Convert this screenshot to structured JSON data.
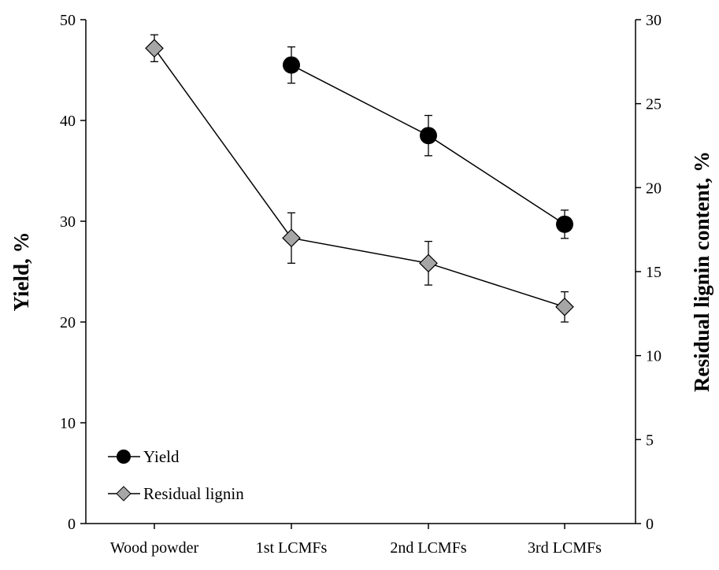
{
  "chart_data": {
    "type": "line",
    "categories": [
      "Wood powder",
      "1st LCMFs",
      "2nd LCMFs",
      "3rd LCMFs"
    ],
    "ylabel": "Yield, %",
    "y2label": "Residual lignin content, %",
    "ylim": [
      0,
      50
    ],
    "y2lim": [
      0,
      30
    ],
    "yticks": [
      0,
      10,
      20,
      30,
      40,
      50
    ],
    "y2ticks": [
      0,
      5,
      10,
      15,
      20,
      25,
      30
    ],
    "grid": false,
    "legend_position": "bottom-left",
    "series": [
      {
        "name": "Yield",
        "axis": "left",
        "marker": "circle",
        "color": "#000000",
        "values": [
          null,
          45.5,
          38.5,
          29.7
        ],
        "errors": [
          null,
          1.8,
          2.0,
          1.4
        ]
      },
      {
        "name": "Residual lignin",
        "axis": "right",
        "marker": "diamond",
        "color": "#a6a6a6",
        "values": [
          28.3,
          17.0,
          15.5,
          12.9
        ],
        "errors": [
          0.8,
          1.5,
          1.3,
          0.9
        ]
      }
    ]
  }
}
